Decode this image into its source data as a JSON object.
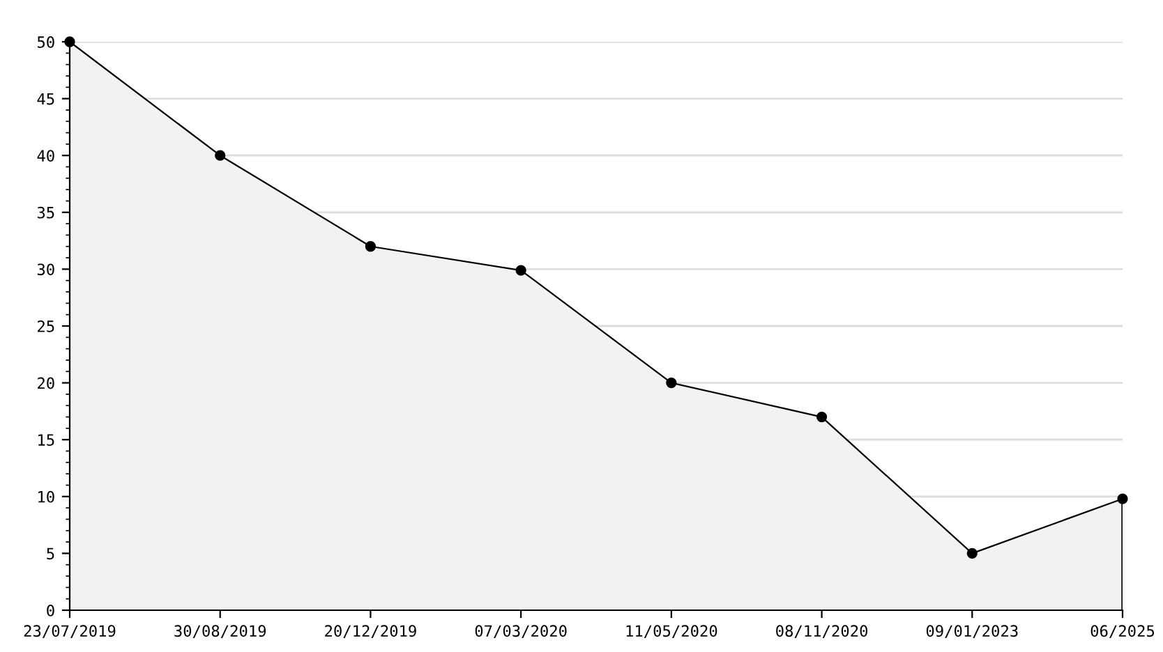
{
  "chart_data": {
    "type": "area",
    "categories": [
      "23/07/2019",
      "30/08/2019",
      "20/12/2019",
      "07/03/2020",
      "11/05/2020",
      "08/11/2020",
      "09/01/2023",
      "06/2025"
    ],
    "series": [
      {
        "color": "#000000",
        "values": [
          50,
          40,
          32,
          29.9,
          20,
          17,
          5,
          9.8
        ]
      }
    ],
    "ylim": [
      0,
      50
    ],
    "yticks": [
      0,
      5,
      10,
      15,
      20,
      25,
      30,
      35,
      40,
      45,
      50
    ],
    "grid": "y",
    "marker": "circle",
    "line_style": "solid",
    "legend": false
  }
}
